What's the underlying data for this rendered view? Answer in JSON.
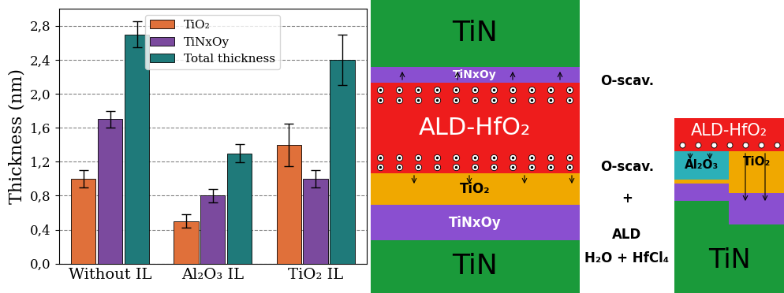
{
  "chart_data": {
    "type": "bar",
    "y_label": "Thickness (nm)",
    "categories": [
      "Without IL",
      "Al₂O₃ IL",
      "TiO₂ IL"
    ],
    "series": [
      {
        "name": "TiO₂",
        "color": "#e0703a",
        "values": [
          1.0,
          0.5,
          1.4
        ],
        "errors": [
          0.1,
          0.08,
          0.25
        ]
      },
      {
        "name": "TiNxOy",
        "color": "#7b4a9e",
        "values": [
          1.7,
          0.8,
          1.0
        ],
        "errors": [
          0.1,
          0.08,
          0.1
        ]
      },
      {
        "name": "Total thickness",
        "color": "#1f7a7a",
        "values": [
          2.7,
          1.3,
          2.4
        ],
        "errors": [
          0.15,
          0.11,
          0.3
        ]
      }
    ],
    "ylim": [
      0,
      3.0
    ],
    "yticks": [
      {
        "value": 0,
        "label": "0,0"
      },
      {
        "value": 0.4,
        "label": "0,4"
      },
      {
        "value": 0.8,
        "label": "0,8"
      },
      {
        "value": 1.2,
        "label": "1,2"
      },
      {
        "value": 1.6,
        "label": "1,6"
      },
      {
        "value": 2.0,
        "label": "2,0"
      },
      {
        "value": 2.4,
        "label": "2,4"
      },
      {
        "value": 2.8,
        "label": "2,8"
      }
    ],
    "grid": true,
    "legend": "upper center"
  },
  "diagram": {
    "left_stack": [
      "TiN",
      "TiNxOy",
      "ALD-HfO₂",
      "TiO₂",
      "TiNxOy",
      "TiN"
    ],
    "middle_labels": [
      "O-scav.",
      "O-scav.",
      "+",
      "ALD",
      "H₂O + HfCl₄"
    ],
    "right_stack": [
      "ALD-HfO₂",
      "Al₂O₃",
      "TiO₂",
      "TiN"
    ]
  }
}
